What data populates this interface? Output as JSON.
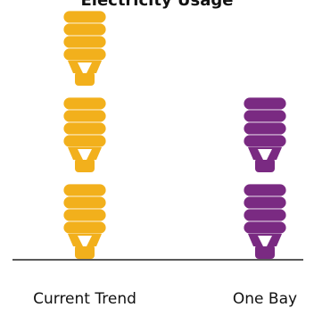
{
  "chart_data": {
    "type": "pictograph",
    "title": "Electricity Usage",
    "categories": [
      "Current Trend",
      "One Bay"
    ],
    "values": [
      3,
      2
    ],
    "colors": [
      "#f2b01c",
      "#7a2a82"
    ]
  }
}
